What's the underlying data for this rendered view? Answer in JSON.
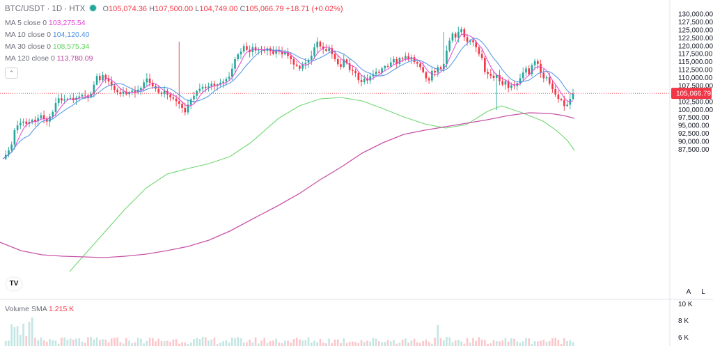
{
  "header": {
    "symbol": "BTC/USDT · 1D · HTX",
    "o_key": "O",
    "o_val": "105,074.36",
    "h_key": "H",
    "h_val": "107,500.00",
    "l_key": "L",
    "l_val": "104,749.00",
    "c_key": "C",
    "c_val": "105,066.79",
    "change": "+18.71 (+0.02%)",
    "status_icon": "live-dot-icon"
  },
  "ma": [
    {
      "label": "MA 5 close 0",
      "value": "103,275.54",
      "color": "#e040d6"
    },
    {
      "label": "MA 10 close 0",
      "value": "104,120.40",
      "color": "#4a90e2"
    },
    {
      "label": "MA 30 close 0",
      "value": "108,575.34",
      "color": "#5fd35f"
    },
    {
      "label": "MA 120 close 0",
      "value": "113,780.09",
      "color": "#c2419f"
    }
  ],
  "collapse_icon": "chevron-up-icon",
  "volume": {
    "label": "Volume SMA",
    "value": "1.215 K",
    "axis_ticks": [
      "10 K",
      "8 K",
      "6 K"
    ]
  },
  "logo": "TV",
  "axis_buttons": {
    "auto": "A",
    "log": "L"
  },
  "chart_data": {
    "type": "candlestick",
    "colors": {
      "up": "#26a69a",
      "down": "#f23645",
      "ma5": "#e040d6",
      "ma10": "#4a90e2",
      "ma30": "#5fd35f",
      "ma120": "#c2419f"
    },
    "y_ticks": [
      "130,000.00",
      "127,500.00",
      "125,000.00",
      "122,500.00",
      "120,000.00",
      "117,500.00",
      "115,000.00",
      "112,500.00",
      "110,000.00",
      "107,500.00",
      "102,500.00",
      "100,000.00",
      "97,500.00",
      "95,000.00",
      "92,500.00",
      "90,000.00",
      "87,500.00"
    ],
    "last_price": 105066.79,
    "last_price_label": "105,066.79",
    "closes": [
      84500,
      85800,
      87200,
      89000,
      93500,
      95000,
      95800,
      96200,
      95500,
      96100,
      96800,
      96300,
      97300,
      98200,
      97000,
      96200,
      97800,
      99200,
      102000,
      103500,
      102800,
      103200,
      103400,
      103600,
      102900,
      103700,
      104100,
      104600,
      104400,
      103800,
      104900,
      107800,
      110500,
      109200,
      110800,
      109600,
      108800,
      107500,
      106200,
      105400,
      104900,
      105600,
      104800,
      105500,
      105900,
      105300,
      106200,
      106800,
      108500,
      109700,
      108400,
      107300,
      106500,
      105300,
      104900,
      105800,
      104700,
      103800,
      103400,
      102600,
      101800,
      100500,
      99100,
      101500,
      103200,
      104300,
      105800,
      106500,
      107100,
      106800,
      107300,
      108100,
      107500,
      107900,
      108400,
      108800,
      109600,
      110300,
      112800,
      115800,
      117300,
      118200,
      119900,
      118700,
      118000,
      119600,
      118500,
      119000,
      118800,
      118400,
      119200,
      118300,
      117500,
      118700,
      118200,
      117300,
      117900,
      116800,
      115800,
      114100,
      113700,
      112800,
      114200,
      114700,
      115600,
      116900,
      119500,
      121300,
      119800,
      118900,
      118400,
      119200,
      117400,
      115800,
      114200,
      113400,
      115700,
      114500,
      112400,
      112100,
      111400,
      109200,
      108600,
      109700,
      109100,
      110400,
      111100,
      111900,
      111500,
      112900,
      113600,
      113500,
      114800,
      115800,
      114300,
      116200,
      115900,
      116800,
      115700,
      116400,
      114900,
      114400,
      113300,
      111700,
      109800,
      109100,
      112100,
      111600,
      113300,
      112700,
      114300,
      118500,
      121600,
      123800,
      122600,
      124300,
      125200,
      122700,
      121300,
      121700,
      121100,
      119500,
      117400,
      116200,
      111800,
      111200,
      110600,
      109900,
      110800,
      108900,
      107800,
      108900,
      106800,
      107600,
      107400,
      108300,
      109800,
      111600,
      112900,
      111100,
      113900,
      115200,
      114300,
      111500,
      109800,
      110100,
      108100,
      106400,
      104700,
      103300,
      102900,
      101100,
      101500,
      103300,
      105000
    ],
    "ma30_points": [
      [
        62,
        430
      ],
      [
        100,
        390
      ],
      [
        140,
        345
      ],
      [
        180,
        300
      ],
      [
        210,
        270
      ],
      [
        240,
        250
      ],
      [
        270,
        242
      ],
      [
        300,
        235
      ],
      [
        330,
        225
      ],
      [
        360,
        205
      ],
      [
        400,
        170
      ],
      [
        430,
        152
      ],
      [
        460,
        142
      ],
      [
        490,
        140
      ],
      [
        520,
        145
      ],
      [
        550,
        156
      ],
      [
        580,
        168
      ],
      [
        610,
        178
      ],
      [
        640,
        184
      ],
      [
        670,
        179
      ],
      [
        700,
        160
      ],
      [
        720,
        152
      ],
      [
        750,
        162
      ],
      [
        780,
        174
      ],
      [
        800,
        188
      ],
      [
        815,
        202
      ],
      [
        825,
        216
      ]
    ],
    "ma120_points": [
      [
        0,
        348
      ],
      [
        30,
        360
      ],
      [
        60,
        366
      ],
      [
        90,
        368
      ],
      [
        120,
        369
      ],
      [
        150,
        370
      ],
      [
        180,
        368
      ],
      [
        210,
        365
      ],
      [
        240,
        360
      ],
      [
        270,
        354
      ],
      [
        300,
        345
      ],
      [
        330,
        332
      ],
      [
        360,
        316
      ],
      [
        400,
        295
      ],
      [
        430,
        278
      ],
      [
        460,
        258
      ],
      [
        490,
        240
      ],
      [
        520,
        220
      ],
      [
        550,
        205
      ],
      [
        580,
        193
      ],
      [
        610,
        187
      ],
      [
        640,
        182
      ],
      [
        670,
        177
      ],
      [
        700,
        172
      ],
      [
        730,
        166
      ],
      [
        760,
        162
      ],
      [
        790,
        163
      ],
      [
        810,
        166
      ],
      [
        825,
        170
      ]
    ]
  }
}
